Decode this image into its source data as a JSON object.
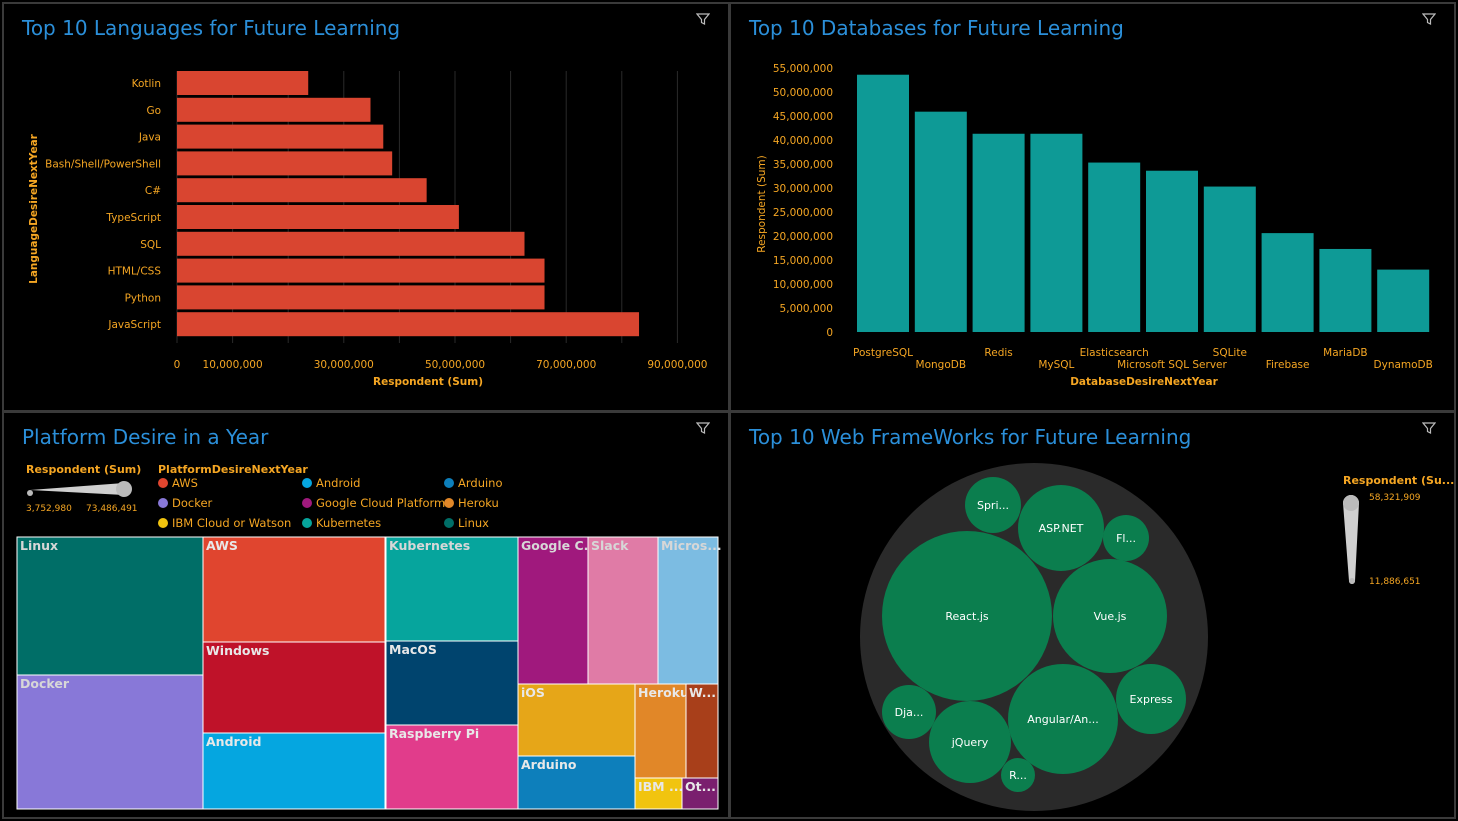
{
  "panels": {
    "languages": {
      "title": "Top 10 Languages for Future Learning",
      "chart_data": {
        "type": "bar",
        "orientation": "horizontal",
        "categories": [
          "Kotlin",
          "Go",
          "Java",
          "Bash/Shell/PowerShell",
          "C#",
          "TypeScript",
          "SQL",
          "HTML/CSS",
          "Python",
          "JavaScript"
        ],
        "values": [
          23600000,
          34800000,
          37100000,
          38700000,
          44900000,
          50700000,
          62500000,
          66100000,
          66100000,
          83100000
        ],
        "xlabel": "Respondent (Sum)",
        "ylabel": "LanguageDesireNextYear",
        "xticks": [
          "0",
          "10,000,000",
          "30,000,000",
          "50,000,000",
          "70,000,000",
          "90,000,000"
        ],
        "xlim": [
          0,
          95000000
        ],
        "color": "#d94530"
      }
    },
    "databases": {
      "title": "Top 10 Databases for Future Learning",
      "chart_data": {
        "type": "bar",
        "categories": [
          "PostgreSQL",
          "MongoDB",
          "Redis",
          "MySQL",
          "Elasticsearch",
          "Microsoft SQL Server",
          "SQLite",
          "Firebase",
          "MariaDB",
          "DynamoDB"
        ],
        "values": [
          53600000,
          45900000,
          41300000,
          41300000,
          35300000,
          33600000,
          30300000,
          20600000,
          17300000,
          13000000
        ],
        "xlabel": "DatabaseDesireNextYear",
        "ylabel": "Respondent (Sum)",
        "yticks": [
          "0",
          "5,000,000",
          "10,000,000",
          "15,000,000",
          "20,000,000",
          "25,000,000",
          "30,000,000",
          "35,000,000",
          "40,000,000",
          "45,000,000",
          "50,000,000",
          "55,000,000"
        ],
        "ylim": [
          0,
          55000000
        ],
        "color": "#0e9a96"
      }
    },
    "platforms": {
      "title": "Platform Desire in a Year",
      "size_legend": {
        "title": "Respondent (Sum)",
        "min": "3,752,980",
        "max": "73,486,491"
      },
      "color_legend_title": "PlatformDesireNextYear",
      "legend": [
        {
          "name": "AWS",
          "color": "#e0452f"
        },
        {
          "name": "Android",
          "color": "#05a6e0"
        },
        {
          "name": "Arduino",
          "color": "#0d7fbb"
        },
        {
          "name": "Docker",
          "color": "#8878d8"
        },
        {
          "name": "Google Cloud Platform",
          "color": "#a0197d"
        },
        {
          "name": "Heroku",
          "color": "#e18728"
        },
        {
          "name": "IBM Cloud or Watson",
          "color": "#f1c40f"
        },
        {
          "name": "Kubernetes",
          "color": "#06a59d"
        },
        {
          "name": "Linux",
          "color": "#006e67"
        }
      ],
      "chart_data": {
        "type": "treemap",
        "items": [
          {
            "name": "Linux",
            "color": "#006e67"
          },
          {
            "name": "Docker",
            "color": "#8878d8"
          },
          {
            "name": "AWS",
            "color": "#e0452f"
          },
          {
            "name": "Windows",
            "color": "#bf1229"
          },
          {
            "name": "Android",
            "color": "#05a6e0"
          },
          {
            "name": "Kubernetes",
            "color": "#06a59d"
          },
          {
            "name": "MacOS",
            "color": "#00446e"
          },
          {
            "name": "Raspberry Pi",
            "color": "#e13c8b"
          },
          {
            "name": "Google C...",
            "color": "#a0197d"
          },
          {
            "name": "Slack",
            "color": "#e07ba6"
          },
          {
            "name": "Micros...",
            "color": "#7cbce2"
          },
          {
            "name": "iOS",
            "color": "#e6a618"
          },
          {
            "name": "Heroku",
            "color": "#e18728"
          },
          {
            "name": "W...",
            "color": "#a83f1a"
          },
          {
            "name": "Arduino",
            "color": "#0d7fbb"
          },
          {
            "name": "IBM ...",
            "color": "#f1c40f"
          },
          {
            "name": "Ot...",
            "color": "#7a1f6e"
          }
        ]
      }
    },
    "frameworks": {
      "title": "Top 10 Web FrameWorks for Future Learning",
      "size_legend": {
        "title": "Respondent (Su...",
        "max": "58,321,909",
        "min": "11,886,651"
      },
      "chart_data": {
        "type": "bubble",
        "items": [
          "Spri...",
          "ASP.NET",
          "Fl...",
          "React.js",
          "Vue.js",
          "Dja...",
          "jQuery",
          "Angular/An...",
          "Express",
          "R..."
        ],
        "color": "#0b7e4e"
      }
    }
  }
}
